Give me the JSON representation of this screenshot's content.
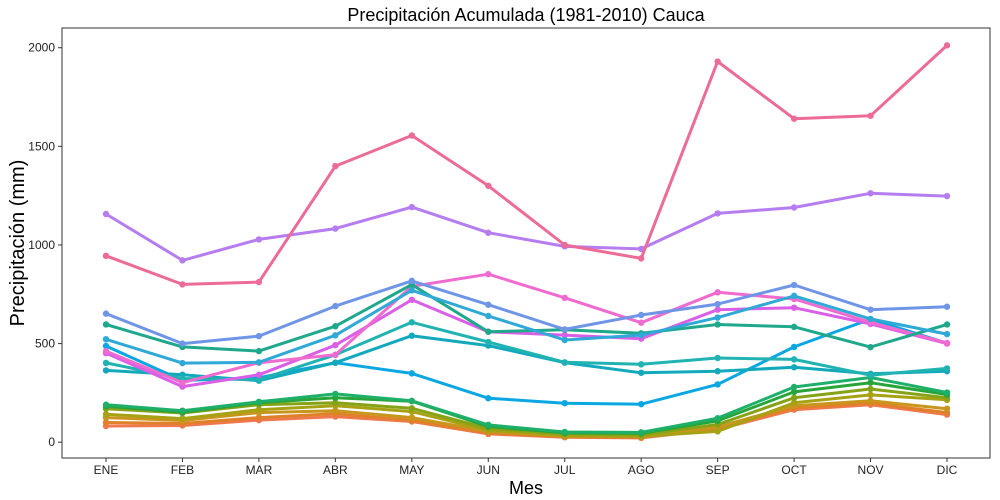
{
  "chart_data": {
    "type": "line",
    "title": "Precipitación Acumulada (1981-2010)  Cauca",
    "xlabel": "Mes",
    "ylabel": "Precipitación  (mm)",
    "categories": [
      "ENE",
      "FEB",
      "MAR",
      "ABR",
      "MAY",
      "JUN",
      "JUL",
      "AGO",
      "SEP",
      "OCT",
      "NOV",
      "DIC"
    ],
    "yticks": [
      "0",
      "500",
      "1000",
      "1500",
      "2000"
    ],
    "ylim": [
      -80,
      2100
    ],
    "grid": false,
    "legend": "none",
    "series": [
      {
        "color": "#EC6B98",
        "values": [
          945,
          800,
          812,
          1400,
          1555,
          1300,
          1000,
          932,
          1930,
          1640,
          1655,
          2012
        ]
      },
      {
        "color": "#B57DEF",
        "values": [
          1157,
          922,
          1028,
          1083,
          1192,
          1062,
          993,
          980,
          1160,
          1190,
          1262,
          1248
        ]
      },
      {
        "color": "#6F95E6",
        "values": [
          652,
          500,
          538,
          690,
          818,
          697,
          572,
          645,
          700,
          797,
          672,
          687
        ]
      },
      {
        "color": "#2FA9D6",
        "values": [
          522,
          401,
          405,
          542,
          770,
          640,
          518,
          543,
          632,
          742,
          625,
          548
        ]
      },
      {
        "color": "#1FA88B",
        "values": [
          597,
          483,
          462,
          588,
          799,
          560,
          570,
          552,
          597,
          585,
          482,
          597
        ]
      },
      {
        "color": "#F06BD0",
        "values": [
          462,
          302,
          403,
          443,
          790,
          852,
          732,
          606,
          760,
          726,
          608,
          503
        ]
      },
      {
        "color": "#D85FE6",
        "values": [
          452,
          282,
          342,
          492,
          722,
          560,
          543,
          525,
          672,
          682,
          600,
          500
        ]
      },
      {
        "color": "#21B3B2",
        "values": [
          402,
          323,
          317,
          443,
          608,
          508,
          405,
          395,
          427,
          420,
          340,
          374
        ]
      },
      {
        "color": "#12A9BD",
        "values": [
          364,
          342,
          312,
          403,
          540,
          490,
          403,
          352,
          360,
          380,
          347,
          360
        ]
      },
      {
        "color": "#0AA7E2",
        "values": [
          488,
          313,
          327,
          403,
          349,
          223,
          198,
          193,
          293,
          483,
          624,
          502
        ]
      },
      {
        "color": "#1EB06A",
        "values": [
          190,
          160,
          205,
          245,
          210,
          88,
          52,
          50,
          122,
          280,
          328,
          252
        ]
      },
      {
        "color": "#28A53A",
        "values": [
          182,
          152,
          200,
          225,
          208,
          80,
          47,
          45,
          108,
          255,
          302,
          242
        ]
      },
      {
        "color": "#86A317",
        "values": [
          170,
          148,
          190,
          200,
          172,
          70,
          42,
          38,
          90,
          225,
          270,
          225
        ]
      },
      {
        "color": "#A7A214",
        "values": [
          142,
          120,
          165,
          185,
          155,
          60,
          35,
          30,
          55,
          200,
          240,
          215
        ]
      },
      {
        "color": "#C8961C",
        "values": [
          125,
          110,
          150,
          160,
          125,
          55,
          30,
          28,
          78,
          185,
          210,
          170
        ]
      },
      {
        "color": "#E0812A",
        "values": [
          100,
          95,
          125,
          145,
          110,
          48,
          28,
          25,
          70,
          175,
          198,
          150
        ]
      },
      {
        "color": "#F0784E",
        "values": [
          82,
          85,
          112,
          130,
          105,
          42,
          25,
          22,
          65,
          165,
          190,
          140
        ]
      }
    ]
  }
}
